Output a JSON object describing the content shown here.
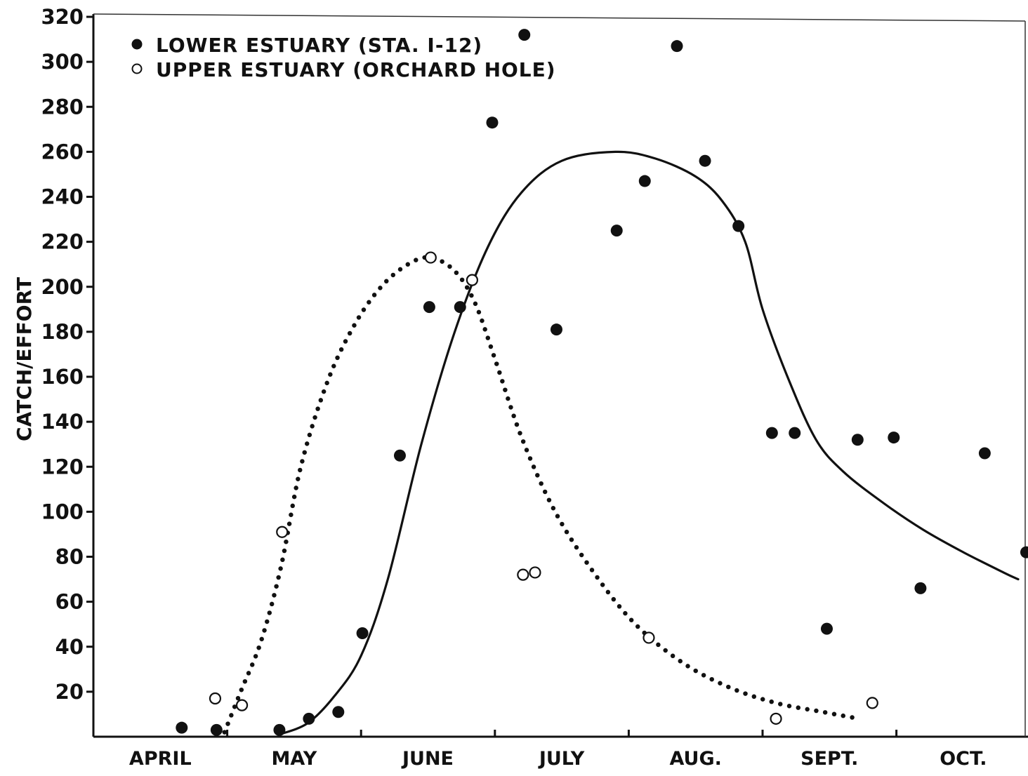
{
  "chart_data": {
    "type": "scatter",
    "title": "",
    "xlabel": "",
    "ylabel": "CATCH/EFFORT",
    "ylim": [
      0,
      320
    ],
    "y_ticks": [
      20,
      40,
      60,
      80,
      100,
      120,
      140,
      160,
      180,
      200,
      220,
      240,
      260,
      280,
      300,
      320
    ],
    "x_categories": [
      "APRIL",
      "MAY",
      "JUNE",
      "JULY",
      "AUG.",
      "SEPT.",
      "OCT."
    ],
    "x_unit": "month (April start = 0, Oct. end = 7)",
    "xlim": [
      0,
      7
    ],
    "legend_position": "top-left",
    "grid": false,
    "colors": {
      "ink": "#111111",
      "background": "#ffffff"
    },
    "series": [
      {
        "name": "LOWER ESTUARY (STA. I-12)",
        "marker": "filled-circle",
        "points": [
          {
            "x": 0.66,
            "y": 4
          },
          {
            "x": 0.92,
            "y": 3
          },
          {
            "x": 1.39,
            "y": 3
          },
          {
            "x": 1.61,
            "y": 8
          },
          {
            "x": 1.83,
            "y": 11
          },
          {
            "x": 2.01,
            "y": 46
          },
          {
            "x": 2.29,
            "y": 125
          },
          {
            "x": 2.51,
            "y": 191
          },
          {
            "x": 2.74,
            "y": 191
          },
          {
            "x": 2.98,
            "y": 273
          },
          {
            "x": 3.22,
            "y": 312
          },
          {
            "x": 3.46,
            "y": 181
          },
          {
            "x": 3.91,
            "y": 225
          },
          {
            "x": 4.12,
            "y": 247
          },
          {
            "x": 4.36,
            "y": 307
          },
          {
            "x": 4.57,
            "y": 256
          },
          {
            "x": 4.82,
            "y": 227
          },
          {
            "x": 5.07,
            "y": 135
          },
          {
            "x": 5.24,
            "y": 135
          },
          {
            "x": 5.48,
            "y": 48
          },
          {
            "x": 5.71,
            "y": 132
          },
          {
            "x": 5.98,
            "y": 133
          },
          {
            "x": 6.18,
            "y": 66
          },
          {
            "x": 6.66,
            "y": 126
          },
          {
            "x": 6.97,
            "y": 82
          }
        ],
        "fit_curve": [
          {
            "x": 1.39,
            "y": 1
          },
          {
            "x": 1.6,
            "y": 6
          },
          {
            "x": 1.8,
            "y": 18
          },
          {
            "x": 2.0,
            "y": 36
          },
          {
            "x": 2.2,
            "y": 70
          },
          {
            "x": 2.45,
            "y": 130
          },
          {
            "x": 2.7,
            "y": 180
          },
          {
            "x": 2.95,
            "y": 218
          },
          {
            "x": 3.2,
            "y": 242
          },
          {
            "x": 3.5,
            "y": 256
          },
          {
            "x": 3.9,
            "y": 260
          },
          {
            "x": 4.2,
            "y": 257
          },
          {
            "x": 4.5,
            "y": 249
          },
          {
            "x": 4.7,
            "y": 238
          },
          {
            "x": 4.87,
            "y": 220
          },
          {
            "x": 5.0,
            "y": 190
          },
          {
            "x": 5.2,
            "y": 158
          },
          {
            "x": 5.4,
            "y": 132
          },
          {
            "x": 5.6,
            "y": 118
          },
          {
            "x": 5.9,
            "y": 104
          },
          {
            "x": 6.2,
            "y": 92
          },
          {
            "x": 6.5,
            "y": 82
          },
          {
            "x": 6.8,
            "y": 73
          },
          {
            "x": 6.91,
            "y": 70
          }
        ]
      },
      {
        "name": "UPPER ESTUARY (ORCHARD HOLE)",
        "marker": "open-circle",
        "points": [
          {
            "x": 0.91,
            "y": 17
          },
          {
            "x": 1.11,
            "y": 14
          },
          {
            "x": 1.41,
            "y": 91
          },
          {
            "x": 2.52,
            "y": 213
          },
          {
            "x": 2.83,
            "y": 203
          },
          {
            "x": 3.21,
            "y": 72
          },
          {
            "x": 3.3,
            "y": 73
          },
          {
            "x": 4.15,
            "y": 44
          },
          {
            "x": 5.1,
            "y": 8
          },
          {
            "x": 5.82,
            "y": 15
          }
        ],
        "fit_curve": [
          {
            "x": 0.98,
            "y": 2
          },
          {
            "x": 1.1,
            "y": 20
          },
          {
            "x": 1.25,
            "y": 42
          },
          {
            "x": 1.4,
            "y": 75
          },
          {
            "x": 1.55,
            "y": 120
          },
          {
            "x": 1.75,
            "y": 158
          },
          {
            "x": 1.95,
            "y": 183
          },
          {
            "x": 2.15,
            "y": 200
          },
          {
            "x": 2.35,
            "y": 210
          },
          {
            "x": 2.52,
            "y": 213
          },
          {
            "x": 2.7,
            "y": 207
          },
          {
            "x": 2.85,
            "y": 193
          },
          {
            "x": 3.0,
            "y": 168
          },
          {
            "x": 3.2,
            "y": 133
          },
          {
            "x": 3.45,
            "y": 100
          },
          {
            "x": 3.75,
            "y": 72
          },
          {
            "x": 4.05,
            "y": 50
          },
          {
            "x": 4.4,
            "y": 33
          },
          {
            "x": 4.75,
            "y": 22
          },
          {
            "x": 5.1,
            "y": 15
          },
          {
            "x": 5.45,
            "y": 11
          },
          {
            "x": 5.72,
            "y": 8
          }
        ]
      }
    ]
  }
}
